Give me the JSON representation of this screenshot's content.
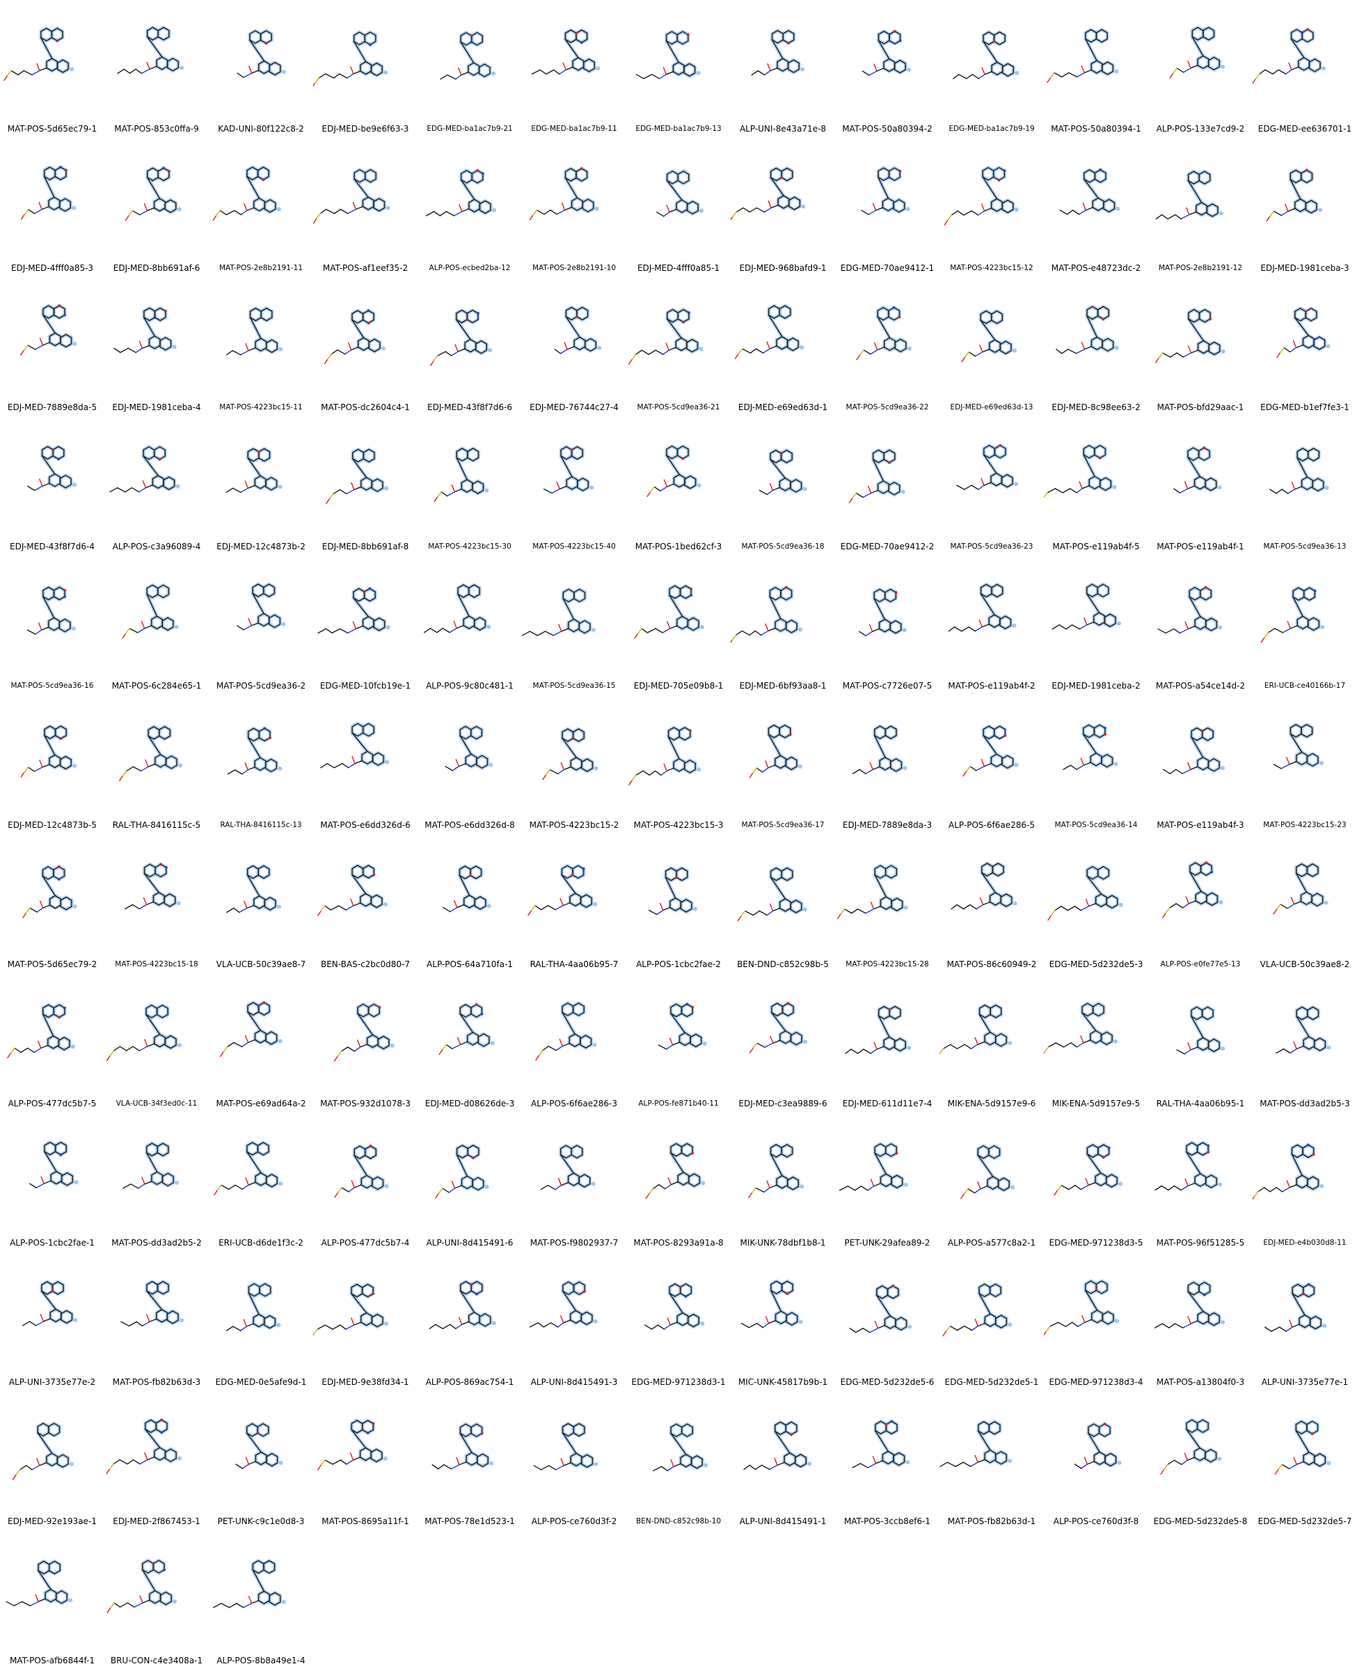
{
  "compounds": [
    [
      "MAT-POS-5d65ec79-1",
      "MAT-POS-853c0ffa-9",
      "KAD-UNI-80f122c8-2",
      "EDJ-MED-be9e6f63-3",
      "EDG-MED-ba1ac7b9-21",
      "EDG-MED-ba1ac7b9-11",
      "EDG-MED-ba1ac7b9-13",
      "ALP-UNI-8e43a71e-8",
      "MAT-POS-50a80394-2",
      "EDG-MED-ba1ac7b9-19",
      "MAT-POS-50a80394-1",
      "ALP-POS-133e7cd9-2",
      "EDG-MED-ee636701-1"
    ],
    [
      "EDJ-MED-4fff0a85-3",
      "EDJ-MED-8bb691af-6",
      "MAT-POS-2e8b2191-11",
      "MAT-POS-af1eef35-2",
      "ALP-POS-ecbed2ba-12",
      "MAT-POS-2e8b2191-10",
      "EDJ-MED-4fff0a85-1",
      "EDJ-MED-968bafd9-1",
      "EDG-MED-70ae9412-1",
      "MAT-POS-4223bc15-12",
      "MAT-POS-e48723dc-2",
      "MAT-POS-2e8b2191-12",
      "EDJ-MED-1981ceba-3"
    ],
    [
      "EDJ-MED-7889e8da-5",
      "EDJ-MED-1981ceba-4",
      "MAT-POS-4223bc15-11",
      "MAT-POS-dc2604c4-1",
      "EDJ-MED-43f8f7d6-6",
      "EDJ-MED-76744c27-4",
      "MAT-POS-5cd9ea36-21",
      "EDJ-MED-e69ed63d-1",
      "MAT-POS-5cd9ea36-22",
      "EDJ-MED-e69ed63d-13",
      "EDJ-MED-8c98ee63-2",
      "MAT-POS-bfd29aac-1",
      "EDG-MED-b1ef7fe3-1"
    ],
    [
      "EDJ-MED-43f8f7d6-4",
      "ALP-POS-c3a96089-4",
      "EDJ-MED-12c4873b-2",
      "EDJ-MED-8bb691af-8",
      "MAT-POS-4223bc15-30",
      "MAT-POS-4223bc15-40",
      "MAT-POS-1bed62cf-3",
      "MAT-POS-5cd9ea36-18",
      "EDG-MED-70ae9412-2",
      "MAT-POS-5cd9ea36-23",
      "MAT-POS-e119ab4f-5",
      "MAT-POS-e119ab4f-1",
      "MAT-POS-5cd9ea36-13"
    ],
    [
      "MAT-POS-5cd9ea36-16",
      "MAT-POS-6c284e65-1",
      "MAT-POS-5cd9ea36-2",
      "EDG-MED-10fcb19e-1",
      "ALP-POS-9c80c481-1",
      "MAT-POS-5cd9ea36-15",
      "EDJ-MED-705e09b8-1",
      "EDJ-MED-6bf93aa8-1",
      "MAT-POS-c7726e07-5",
      "MAT-POS-e119ab4f-2",
      "EDJ-MED-1981ceba-2",
      "MAT-POS-a54ce14d-2",
      "ERI-UCB-ce40166b-17"
    ],
    [
      "EDJ-MED-12c4873b-5",
      "RAL-THA-8416115c-5",
      "RAL-THA-8416115c-13",
      "MAT-POS-e6dd326d-6",
      "MAT-POS-e6dd326d-8",
      "MAT-POS-4223bc15-2",
      "MAT-POS-4223bc15-3",
      "MAT-POS-5cd9ea36-17",
      "EDJ-MED-7889e8da-3",
      "ALP-POS-6f6ae286-5",
      "MAT-POS-5cd9ea36-14",
      "MAT-POS-e119ab4f-3",
      "MAT-POS-4223bc15-23"
    ],
    [
      "MAT-POS-5d65ec79-2",
      "MAT-POS-4223bc15-18",
      "VLA-UCB-50c39ae8-7",
      "BEN-BAS-c2bc0d80-7",
      "ALP-POS-64a710fa-1",
      "RAL-THA-4aa06b95-7",
      "ALP-POS-1cbc2fae-2",
      "BEN-DND-c852c98b-5",
      "MAT-POS-4223bc15-28",
      "MAT-POS-86c60949-2",
      "EDG-MED-5d232de5-3",
      "ALP-POS-e0fe77e5-13",
      "VLA-UCB-50c39ae8-2"
    ],
    [
      "ALP-POS-477dc5b7-5",
      "VLA-UCB-34f3ed0c-11",
      "MAT-POS-e69ad64a-2",
      "MAT-POS-932d1078-3",
      "EDJ-MED-d08626de-3",
      "ALP-POS-6f6ae286-3",
      "ALP-POS-fe871b40-11",
      "EDJ-MED-c3ea9889-6",
      "EDJ-MED-611d11e7-4",
      "MIK-ENA-5d9157e9-6",
      "MIK-ENA-5d9157e9-5",
      "RAL-THA-4aa06b95-1",
      "MAT-POS-dd3ad2b5-3"
    ],
    [
      "ALP-POS-1cbc2fae-1",
      "MAT-POS-dd3ad2b5-2",
      "ERI-UCB-d6de1f3c-2",
      "ALP-POS-477dc5b7-4",
      "ALP-UNI-8d415491-6",
      "MAT-POS-f9802937-7",
      "MAT-POS-8293a91a-8",
      "MIK-UNK-78dbf1b8-1",
      "PET-UNK-29afea89-2",
      "ALP-POS-a577c8a2-1",
      "EDG-MED-971238d3-5",
      "MAT-POS-96f51285-5",
      "EDJ-MED-e4b030d8-11"
    ],
    [
      "ALP-UNI-3735e77e-2",
      "MAT-POS-fb82b63d-3",
      "EDG-MED-0e5afe9d-1",
      "EDJ-MED-9e38fd34-1",
      "ALP-POS-869ac754-1",
      "ALP-UNI-8d415491-3",
      "EDG-MED-971238d3-1",
      "MIC-UNK-45817b9b-1",
      "EDG-MED-5d232de5-6",
      "EDG-MED-5d232de5-1",
      "EDG-MED-971238d3-4",
      "MAT-POS-a13804f0-3",
      "ALP-UNI-3735e77e-1"
    ],
    [
      "EDJ-MED-92e193ae-1",
      "EDJ-MED-2f867453-1",
      "PET-UNK-c9c1e0d8-3",
      "MAT-POS-8695a11f-1",
      "MAT-POS-78e1d523-1",
      "ALP-POS-ce760d3f-2",
      "BEN-DND-c852c98b-10",
      "ALP-UNI-8d415491-1",
      "MAT-POS-3ccb8ef6-1",
      "MAT-POS-fb82b63d-1",
      "ALP-POS-ce760d3f-8",
      "EDG-MED-5d232de5-8",
      "EDG-MED-5d232de5-7"
    ],
    [
      "MAT-POS-afb6844f-1",
      "BRU-CON-c4e3408a-1",
      "ALP-POS-8b8a49e1-4"
    ]
  ],
  "colors": {
    "bond": "#1a1a1a",
    "highlight": "#9ec8f0",
    "oxygen": "#e8161b",
    "nitrogen": "#1f3fd0",
    "sulfur": "#d6b200",
    "label": "#000000"
  }
}
